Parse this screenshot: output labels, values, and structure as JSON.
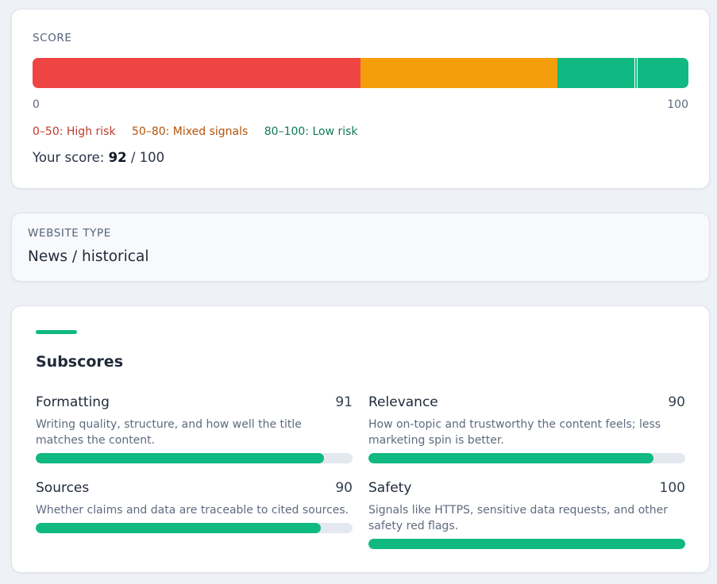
{
  "score": {
    "label": "SCORE",
    "value": 92,
    "max": 100,
    "min_label": "0",
    "max_label": "100",
    "segments": [
      {
        "from": 0,
        "to": 50,
        "color": "#ef4444",
        "legend": "0–50: High risk",
        "legend_color": "#c0392b"
      },
      {
        "from": 50,
        "to": 80,
        "color": "#f59e0b",
        "legend": "50–80: Mixed signals",
        "legend_color": "#b45309"
      },
      {
        "from": 80,
        "to": 100,
        "color": "#10b981",
        "legend": "80–100: Low risk",
        "legend_color": "#0f7a57"
      }
    ],
    "your_score_prefix": "Your score:",
    "your_score_value": "92",
    "your_score_suffix": "/ 100"
  },
  "website_type": {
    "label": "WEBSITE TYPE",
    "value": "News / historical"
  },
  "subscores": {
    "title": "Subscores",
    "accent_color": "#10b981",
    "fill_color": "#10b981",
    "track_color": "#e4e8ef",
    "items": [
      {
        "name": "Formatting",
        "score": 91,
        "score_label": "91",
        "description": "Writing quality, structure, and how well the title matches the content."
      },
      {
        "name": "Relevance",
        "score": 90,
        "score_label": "90",
        "description": "How on-topic and trustworthy the content feels; less marketing spin is better."
      },
      {
        "name": "Sources",
        "score": 90,
        "score_label": "90",
        "description": "Whether claims and data are traceable to cited sources."
      },
      {
        "name": "Safety",
        "score": 100,
        "score_label": "100",
        "description": "Signals like HTTPS, sensitive data requests, and other safety red flags."
      }
    ]
  }
}
